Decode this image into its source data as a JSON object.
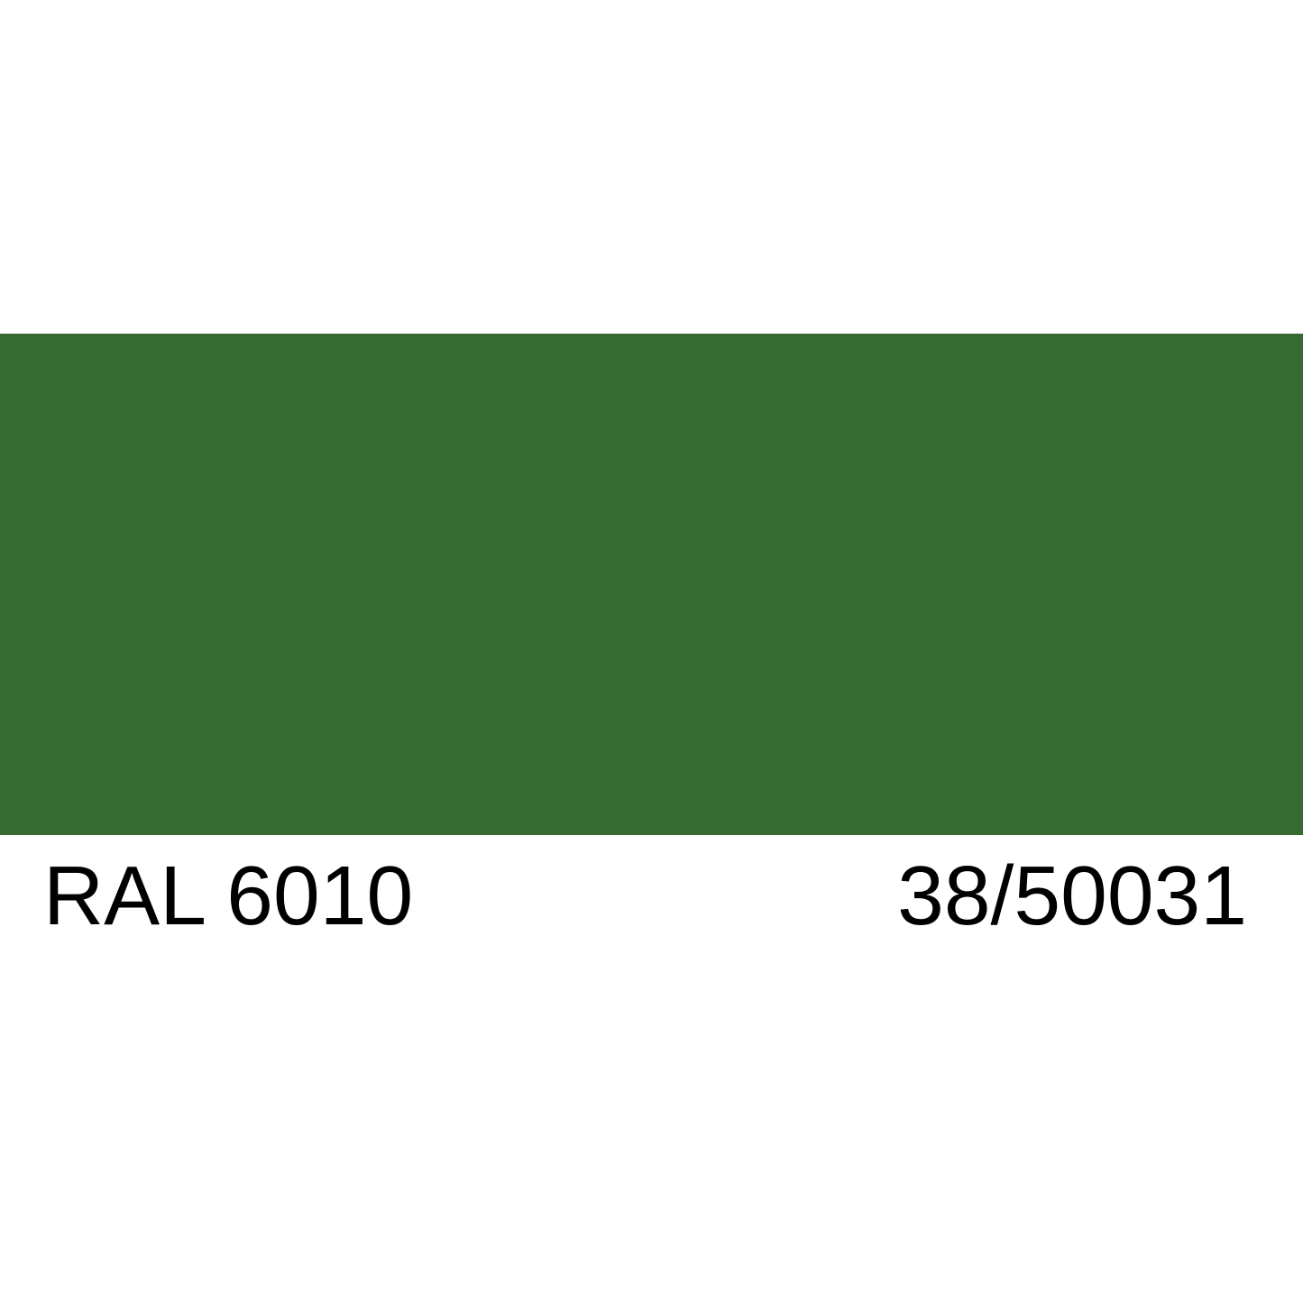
{
  "swatch": {
    "color": "#376a30"
  },
  "labels": {
    "ral_code": "RAL 6010",
    "product_code": "38/50031"
  }
}
